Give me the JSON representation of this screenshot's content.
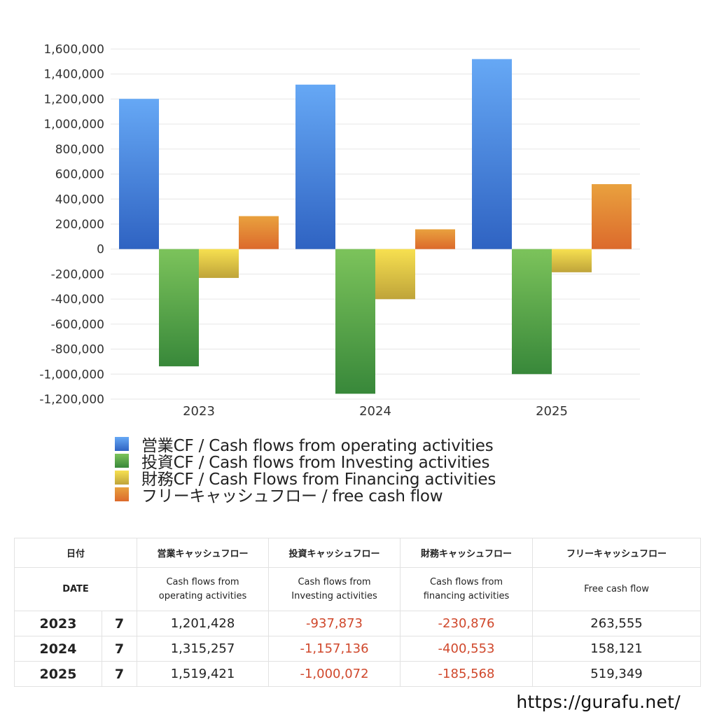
{
  "chart_data": {
    "type": "bar",
    "categories": [
      "2023",
      "2024",
      "2025"
    ],
    "series": [
      {
        "name": "営業CF / Cash flows from operating activities",
        "values": [
          1201428,
          1315257,
          1519421
        ],
        "color_top": "#66a8f5",
        "color_bottom": "#2f63c2"
      },
      {
        "name": "投資CF / Cash flows from Investing activities",
        "values": [
          -937873,
          -1157136,
          -1000072
        ],
        "color_top": "#7cc35b",
        "color_bottom": "#38883a"
      },
      {
        "name": "財務CF / Cash Flows from Financing activities",
        "values": [
          -230876,
          -400553,
          -185568
        ],
        "color_top": "#f7e050",
        "color_bottom": "#bfa43a"
      },
      {
        "name": "フリーキャッシュフロー / free cash flow",
        "values": [
          263555,
          158121,
          519349
        ],
        "color_top": "#e9a13e",
        "color_bottom": "#dc6a2c"
      }
    ],
    "ylim": [
      -1200000,
      1600000
    ],
    "yticks": [
      "1,600,000",
      "1,400,000",
      "1,200,000",
      "1,000,000",
      "800,000",
      "600,000",
      "400,000",
      "200,000",
      "0",
      "-200,000",
      "-400,000",
      "-600,000",
      "-800,000",
      "-1,000,000",
      "-1,200,000"
    ],
    "ytick_values": [
      1600000,
      1400000,
      1200000,
      1000000,
      800000,
      600000,
      400000,
      200000,
      0,
      -200000,
      -400000,
      -600000,
      -800000,
      -1000000,
      -1200000
    ],
    "grid": true,
    "legend_position": "bottom"
  },
  "table": {
    "headers_ja": [
      "日付",
      "営業キャッシュフロー",
      "投資キャッシュフロー",
      "財務キャッシュフロー",
      "フリーキャッシュフロー"
    ],
    "header_date_en": "DATE",
    "headers_en": [
      [
        "Cash flows from",
        "operating activities"
      ],
      [
        "Cash flows from",
        "Investing activities"
      ],
      [
        "Cash flows from",
        "financing activities"
      ],
      [
        "Free cash flow"
      ]
    ],
    "rows": [
      {
        "year": "2023",
        "month": "7",
        "operating": "1,201,428",
        "investing": "-937,873",
        "financing": "-230,876",
        "free": "263,555"
      },
      {
        "year": "2024",
        "month": "7",
        "operating": "1,315,257",
        "investing": "-1,157,136",
        "financing": "-400,553",
        "free": "158,121"
      },
      {
        "year": "2025",
        "month": "7",
        "operating": "1,519,421",
        "investing": "-1,000,072",
        "financing": "-185,568",
        "free": "519,349"
      }
    ],
    "negative_color": "#d0482c"
  },
  "footer": {
    "url": "https://gurafu.net/"
  }
}
